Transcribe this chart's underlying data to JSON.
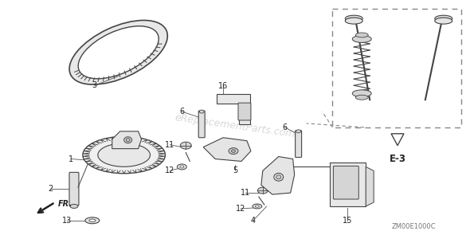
{
  "bg_color": "#ffffff",
  "fig_width": 5.9,
  "fig_height": 2.95,
  "dpi": 100,
  "watermark_text": "eReplacementParts.com",
  "watermark_color": "#bbbbbb",
  "watermark_alpha": 0.55,
  "watermark_rotation": -8,
  "bottom_code": "ZM00E1000C",
  "dashed_color": "#888888",
  "part_label_fontsize": 7,
  "part_label_color": "#222222",
  "line_color": "#444444"
}
